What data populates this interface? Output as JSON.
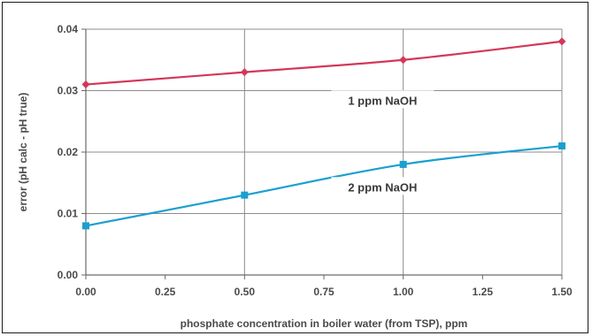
{
  "chart_data": {
    "type": "line",
    "title": "",
    "xlabel": "phosphate concentration in boiler water (from TSP), ppm",
    "ylabel": "error (pH calc - pH true)",
    "x": [
      0.0,
      0.5,
      1.0,
      1.5
    ],
    "xlim": [
      0,
      1.5
    ],
    "ylim": [
      0,
      0.04
    ],
    "xticks": [
      "0.00",
      "0.25",
      "0.50",
      "0.75",
      "1.00",
      "1.25",
      "1.50"
    ],
    "xtick_values": [
      0,
      0.25,
      0.5,
      0.75,
      1.0,
      1.25,
      1.5
    ],
    "yticks": [
      "0.00",
      "0.01",
      "0.02",
      "0.03",
      "0.04"
    ],
    "ytick_values": [
      0,
      0.01,
      0.02,
      0.03,
      0.04
    ],
    "grid": true,
    "series": [
      {
        "name": "1 ppm NaOH",
        "values": [
          0.031,
          0.033,
          0.035,
          0.038
        ],
        "color": "#d2385a",
        "marker": "diamond"
      },
      {
        "name": "2 ppm NaOH",
        "values": [
          0.008,
          0.013,
          0.018,
          0.021
        ],
        "color": "#1a9fd0",
        "marker": "square"
      }
    ]
  }
}
